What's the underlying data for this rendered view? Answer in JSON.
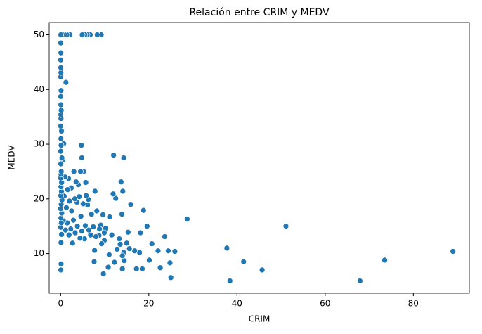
{
  "chart_data": {
    "type": "scatter",
    "title": "Relación entre CRIM y MEDV",
    "x_label": "CRIM",
    "y_label": "MEDV",
    "color": "#1f77b4",
    "xlim": [
      -2.6,
      92.7
    ],
    "ylim": [
      2.75,
      52.25
    ],
    "xticks": [
      0,
      20,
      40,
      60,
      80
    ],
    "yticks": [
      10,
      20,
      30,
      40,
      50
    ],
    "grid": false,
    "x": [
      88.98,
      73.5,
      67.9,
      51.1,
      45.7,
      41.5,
      38.4,
      37.7,
      28.7,
      25.9,
      25.0,
      24.8,
      24.4,
      23.6,
      22.6,
      22.1,
      20.7,
      20.1,
      19.6,
      18.8,
      18.5,
      18.1,
      17.9,
      17.2,
      16.8,
      15.9,
      15.6,
      15.3,
      15.0,
      14.4,
      14.3,
      14.3,
      14.1,
      14.0,
      14.0,
      13.9,
      13.7,
      13.5,
      13.3,
      12.8,
      12.5,
      12.2,
      12.0,
      11.9,
      11.6,
      11.1,
      11.0,
      10.8,
      10.2,
      9.9,
      9.9,
      9.7,
      9.6,
      9.3,
      9.2,
      9.1,
      8.8,
      8.7,
      8.3,
      8.2,
      8.0,
      7.8,
      7.7,
      7.6,
      7.4,
      7.0,
      6.8,
      6.7,
      6.4,
      6.3,
      6.1,
      6.0,
      5.8,
      5.7,
      5.6,
      5.5,
      5.4,
      5.2,
      5.1,
      4.9,
      4.8,
      4.8,
      4.7,
      4.6,
      4.5,
      4.4,
      4.2,
      4.0,
      3.8,
      3.7,
      3.5,
      3.3,
      3.2,
      3.0,
      2.9,
      2.7,
      2.5,
      2.4,
      2.3,
      2.1,
      2.0,
      1.9,
      1.8,
      1.6,
      1.5,
      1.4,
      1.3,
      1.2,
      1.1,
      1.0,
      0.9,
      0.8,
      0.7,
      0.6,
      0.5,
      0.4,
      0.05,
      0.1,
      0.08,
      0.2,
      0.03,
      0.15,
      0.06,
      0.25,
      0.02,
      0.12,
      0.3,
      0.04,
      0.18,
      0.07,
      0.22,
      0.01,
      0.09,
      0.14,
      0.05,
      0.28,
      0.03,
      0.11,
      0.06,
      0.19,
      0.02,
      0.08,
      0.04,
      0.13,
      0.05,
      0.02,
      0.1,
      0.03,
      0.07,
      0.04,
      0.02,
      0.06,
      0.03,
      0.05
    ],
    "y": [
      10.4,
      8.8,
      5.0,
      15.0,
      7.0,
      8.5,
      5.0,
      11.0,
      16.3,
      10.4,
      5.6,
      8.3,
      10.5,
      13.1,
      7.4,
      10.5,
      11.8,
      8.8,
      15.0,
      17.9,
      7.2,
      13.8,
      10.2,
      7.2,
      10.5,
      19.0,
      10.9,
      13.9,
      11.9,
      8.7,
      10.2,
      27.5,
      21.4,
      9.6,
      7.2,
      17.2,
      23.1,
      11.7,
      12.7,
      10.8,
      20.1,
      8.4,
      28.0,
      20.9,
      13.4,
      16.7,
      9.8,
      7.5,
      14.6,
      13.8,
      12.4,
      6.3,
      17.1,
      11.8,
      50,
      15.2,
      14.5,
      13.3,
      50,
      17.8,
      13.1,
      21.4,
      10.6,
      8.5,
      14.9,
      17.2,
      13.4,
      50,
      14.3,
      19.9,
      18.9,
      50,
      20.6,
      23.0,
      15.1,
      50,
      12.7,
      25.0,
      19.1,
      50,
      14.1,
      27.5,
      29.8,
      16.8,
      25.0,
      12.8,
      20.4,
      22.6,
      15.0,
      19.4,
      23.1,
      13.8,
      20.0,
      25.0,
      16.1,
      11.9,
      17.8,
      22.0,
      14.5,
      50,
      19.6,
      13.4,
      23.7,
      21.7,
      15.6,
      50,
      18.4,
      41.3,
      14.3,
      24.0,
      50,
      20.5,
      30.1,
      16.0,
      27.1,
      50,
      7.0,
      8.1,
      12.0,
      13.5,
      14.8,
      15.6,
      16.5,
      17.4,
      18.2,
      19.0,
      19.8,
      20.6,
      21.4,
      22.2,
      23.0,
      23.8,
      24.5,
      25.0,
      26.4,
      27.5,
      28.7,
      29.8,
      31.0,
      32.4,
      33.3,
      34.7,
      35.4,
      36.2,
      37.2,
      38.7,
      39.8,
      42.3,
      43.1,
      44.0,
      45.4,
      46.7,
      48.5,
      50
    ]
  }
}
